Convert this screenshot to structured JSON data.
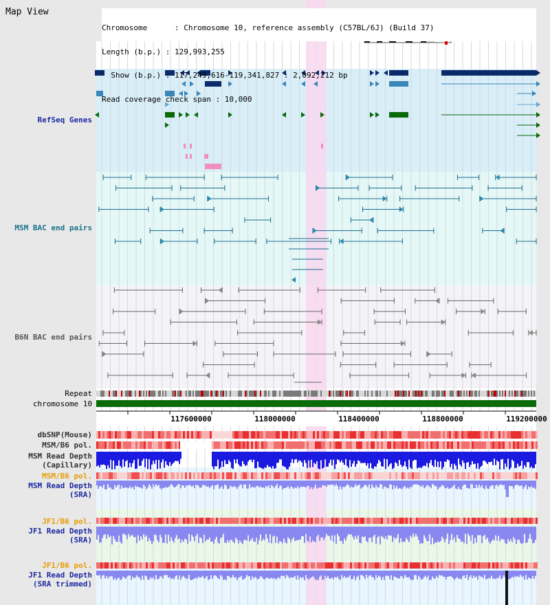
{
  "page": {
    "title": "Map View"
  },
  "info": {
    "rows": [
      "Chromosome      : Chromosome 10, reference assembly (C57BL/6J) (Build 37)",
      "Length (b.p.) : 129,993,255",
      "  Show (b.p.) : 117,249,616-119,341,827 : 2,092,212 bp",
      "Read coverage check span : 10,000"
    ]
  },
  "tracks": {
    "refseq": "RefSeq Genes",
    "msm_bac": "MSM BAC end pairs",
    "b6n_bac": "B6N BAC end pairs",
    "repeat": "Repeat",
    "chromosome": "chromosome 10",
    "dbsnp": "dbSNP(Mouse)",
    "msm_b6_pol1": "MSM/B6 pol.",
    "msm_depth_cap_1": "MSM Read Depth",
    "msm_depth_cap_2": "(Capillary)",
    "msm_b6_pol2": "MSM/B6 pol.",
    "msm_depth_sra_1": "MSM Read Depth",
    "msm_depth_sra_2": "(SRA)",
    "jf1_b6_pol1": "JF1/B6 pol.",
    "jf1_depth_sra_1": "JF1 Read Depth",
    "jf1_depth_sra_2": "(SRA)",
    "jf1_b6_pol2": "JF1/B6 pol.",
    "jf1_depth_trim_1": "JF1 Read Depth",
    "jf1_depth_trim_2": "(SRA trimmed)"
  },
  "axis": {
    "ticks": [
      "117600000",
      "118000000",
      "118400000",
      "118800000",
      "119200000"
    ]
  },
  "colors": {
    "refseq_bg": "#d8eef8",
    "msm_bg": "#e4f8f8",
    "b6n_bg": "#f4f4f8",
    "highlight": "#f8d8f0",
    "chromosome": "#0a6b0a",
    "blue_depth": "#1a1ae0",
    "light_depth": "#8888f0"
  }
}
